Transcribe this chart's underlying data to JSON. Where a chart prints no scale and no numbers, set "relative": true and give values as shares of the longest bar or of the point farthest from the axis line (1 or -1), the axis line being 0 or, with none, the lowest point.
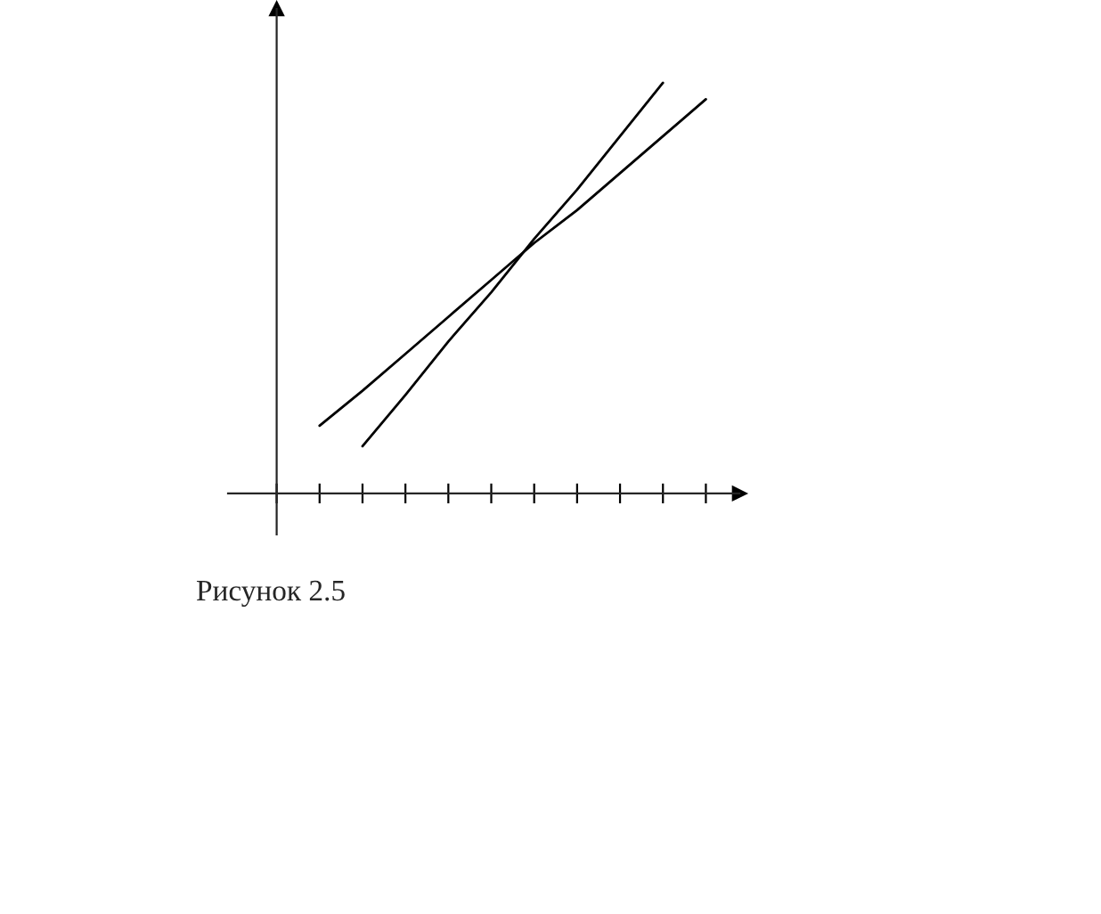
{
  "chart_data": {
    "type": "line",
    "relative": true,
    "categories": [
      null,
      null,
      null,
      null,
      null,
      null,
      null,
      null,
      null,
      null,
      null
    ],
    "series": [
      {
        "color": "#000000",
        "values": [
          null,
          null,
          0.115,
          0.24,
          0.37,
          0.49,
          0.62,
          0.74,
          0.87,
          1.0,
          null
        ]
      },
      {
        "color": "#000000",
        "values": [
          null,
          0.165,
          0.25,
          0.34,
          0.43,
          0.52,
          0.61,
          0.69,
          0.78,
          0.87,
          0.96
        ]
      }
    ],
    "grid": false,
    "legend": false,
    "marker": "none",
    "line_style": "solid",
    "annotations": [
      "Рисунок 2.5"
    ]
  }
}
